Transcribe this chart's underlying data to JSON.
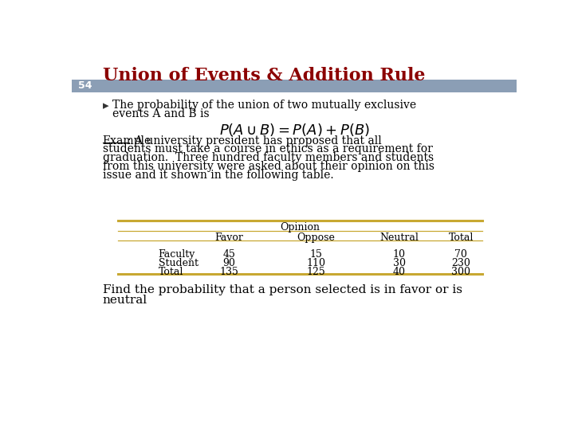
{
  "title": "Union of Events & Addition Rule",
  "title_color": "#8B0000",
  "slide_number": "54",
  "header_bar_color": "#8B9EB5",
  "bullet_line1": "The probability of the union of two mutually exclusive",
  "bullet_line2": "events A and B is",
  "formula": "$P(A \\cup B) = P(A) + P(B)$",
  "example_label": "Example",
  "example_lines": [
    ": A university president has proposed that all",
    "students must take a course in ethics as a requirement for",
    "graduation.  Three hundred faculty members and students",
    "from this university were asked about their opinion on this",
    "issue and it shown in the following table."
  ],
  "find_line1": "Find the probability that a person selected is in favor or is",
  "find_line2": "neutral",
  "table_header_top": "Opinion",
  "table_col_headers": [
    "",
    "Favor",
    "Oppose",
    "Neutral",
    "Total"
  ],
  "table_rows": [
    [
      "Faculty",
      "45",
      "15",
      "10",
      "70"
    ],
    [
      "Student",
      "90",
      "110",
      "30",
      "230"
    ],
    [
      "Total",
      "135",
      "125",
      "40",
      "300"
    ]
  ],
  "table_line_color": "#C8A832",
  "background_color": "#FFFFFF",
  "body_text_color": "#000000"
}
